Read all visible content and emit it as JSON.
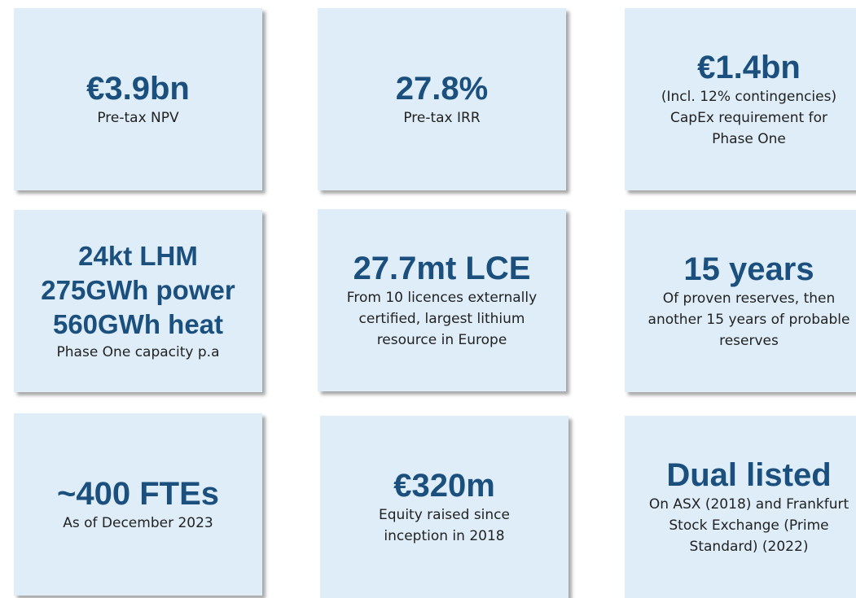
{
  "cards": [
    {
      "headline": [
        "€3.9bn"
      ],
      "text": [
        "Pre-tax NPV"
      ]
    },
    {
      "headline": [
        "27.8%"
      ],
      "text": [
        "Pre-tax IRR"
      ]
    },
    {
      "headline": [
        "€1.4bn"
      ],
      "text": [
        "(Incl. 12% contingencies)",
        "CapEx requirement for",
        "Phase One"
      ]
    },
    {
      "headline": [
        "24kt LHM",
        "275GWh  power",
        "560GWh heat"
      ],
      "text": [
        "Phase One capacity p.a"
      ]
    },
    {
      "headline": [
        "27.7mt LCE"
      ],
      "text": [
        "From 10 licences externally",
        "certified, largest lithium",
        "resource in Europe"
      ]
    },
    {
      "headline": [
        "15 years"
      ],
      "text": [
        "Of proven reserves, then",
        "another 15 years of probable",
        "reserves"
      ]
    },
    {
      "headline": [
        "~400 FTEs"
      ],
      "text": [
        "As of December 2023"
      ]
    },
    {
      "headline": [
        "€320m"
      ],
      "text": [
        "Equity raised since",
        "inception in 2018"
      ]
    },
    {
      "headline": [
        "Dual listed"
      ],
      "text": [
        "On ASX (2018) and Frankfurt",
        "Stock Exchange (Prime",
        "Standard) (2022)"
      ]
    }
  ]
}
